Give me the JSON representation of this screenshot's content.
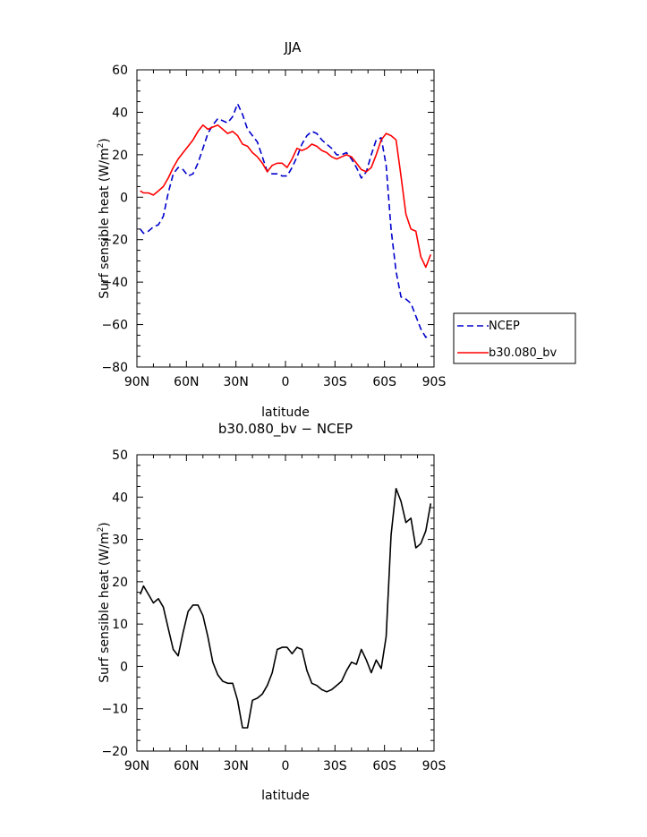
{
  "chart_data": [
    {
      "type": "line",
      "title": "JJA",
      "xlabel": "latitude",
      "ylabel": "Surf sensible heat (W/m²)",
      "ylabel_prefix": "Surf sensible heat (W/m",
      "ylabel_sup": "2",
      "ylabel_suffix": ")",
      "xlim": [
        90,
        -90
      ],
      "ylim": [
        -80,
        60
      ],
      "xticks": [
        90,
        60,
        30,
        0,
        -30,
        -60,
        -90
      ],
      "xtick_labels": [
        "90N",
        "60N",
        "30N",
        "0",
        "30S",
        "60S",
        "90S"
      ],
      "yticks": [
        -80,
        -60,
        -40,
        -20,
        0,
        20,
        40,
        60
      ],
      "ytick_labels": [
        "−80",
        "−60",
        "−40",
        "−20",
        "0",
        "20",
        "40",
        "60"
      ],
      "legend_position": "outside-right",
      "series": [
        {
          "name": "NCEP",
          "color": "#0000cc",
          "style": "dashed",
          "x": [
            88,
            86,
            83,
            80,
            77,
            74,
            71,
            68,
            65,
            62,
            59,
            56,
            53,
            50,
            47,
            44,
            41,
            38,
            35,
            32,
            29,
            26,
            23,
            20,
            17,
            14,
            11,
            8,
            5,
            2,
            -1,
            -4,
            -7,
            -10,
            -13,
            -16,
            -19,
            -22,
            -25,
            -28,
            -31,
            -34,
            -37,
            -40,
            -43,
            -46,
            -49,
            -52,
            -55,
            -58,
            -61,
            -64,
            -67,
            -70,
            -73,
            -76,
            -79,
            -82,
            -85,
            -88
          ],
          "y": [
            -15,
            -17,
            -16,
            -14,
            -13,
            -9,
            2,
            11,
            14,
            13,
            10,
            11,
            16,
            23,
            30,
            34,
            37,
            36,
            35,
            38,
            44,
            39,
            32,
            29,
            26,
            19,
            12,
            11,
            11,
            10,
            10,
            14,
            19,
            25,
            29,
            31,
            30,
            27,
            25,
            23,
            20,
            20,
            21,
            18,
            14,
            9,
            12,
            20,
            27,
            28,
            15,
            -15,
            -35,
            -47,
            -48,
            -50,
            -56,
            -62,
            -66,
            -65
          ]
        },
        {
          "name": "b30.080_bv",
          "color": "#ff0000",
          "style": "solid",
          "x": [
            88,
            86,
            83,
            80,
            77,
            74,
            71,
            68,
            65,
            62,
            59,
            56,
            53,
            50,
            47,
            44,
            41,
            38,
            35,
            32,
            29,
            26,
            23,
            20,
            17,
            14,
            11,
            8,
            5,
            2,
            -1,
            -4,
            -7,
            -10,
            -13,
            -16,
            -19,
            -22,
            -25,
            -28,
            -31,
            -34,
            -37,
            -40,
            -43,
            -46,
            -49,
            -52,
            -55,
            -58,
            -61,
            -64,
            -67,
            -70,
            -73,
            -76,
            -79,
            -82,
            -85,
            -88
          ],
          "y": [
            3,
            2,
            2,
            1,
            3,
            5,
            9,
            14,
            18,
            21,
            24,
            27,
            31,
            34,
            32,
            33,
            34,
            32,
            30,
            31,
            29,
            25,
            24,
            21,
            19,
            16,
            12,
            15,
            16,
            16,
            14,
            18,
            23,
            22,
            23,
            25,
            24,
            22,
            21,
            19,
            18,
            19,
            20,
            19,
            16,
            13,
            12,
            14,
            20,
            27,
            30,
            29,
            27,
            10,
            -8,
            -15,
            -16,
            -28,
            -33,
            -27
          ]
        }
      ]
    },
    {
      "type": "line",
      "title": "b30.080_bv − NCEP",
      "xlabel": "latitude",
      "ylabel": "Surf sensible heat (W/m²)",
      "ylabel_prefix": "Surf sensible heat (W/m",
      "ylabel_sup": "2",
      "ylabel_suffix": ")",
      "xlim": [
        90,
        -90
      ],
      "ylim": [
        -20,
        50
      ],
      "xticks": [
        90,
        60,
        30,
        0,
        -30,
        -60,
        -90
      ],
      "xtick_labels": [
        "90N",
        "60N",
        "30N",
        "0",
        "30S",
        "60S",
        "90S"
      ],
      "yticks": [
        -20,
        -10,
        0,
        10,
        20,
        30,
        40,
        50
      ],
      "ytick_labels": [
        "−20",
        "−10",
        "0",
        "10",
        "20",
        "30",
        "40",
        "50"
      ],
      "series": [
        {
          "name": "",
          "color": "#000000",
          "style": "solid",
          "x": [
            88,
            86,
            83,
            80,
            77,
            74,
            71,
            68,
            65,
            62,
            59,
            56,
            53,
            50,
            47,
            44,
            41,
            38,
            35,
            32,
            29,
            26,
            23,
            20,
            17,
            14,
            11,
            8,
            5,
            2,
            -1,
            -4,
            -7,
            -10,
            -13,
            -16,
            -19,
            -22,
            -25,
            -28,
            -31,
            -34,
            -37,
            -40,
            -43,
            -46,
            -49,
            -52,
            -55,
            -58,
            -61,
            -64,
            -67,
            -70,
            -73,
            -76,
            -79,
            -82,
            -85,
            -88
          ],
          "y": [
            17,
            19,
            17,
            15,
            16,
            14,
            9,
            4,
            2.5,
            8,
            13,
            14.5,
            14.5,
            12,
            7,
            1,
            -2,
            -3.5,
            -4,
            -4,
            -8,
            -14.5,
            -14.5,
            -8,
            -7.5,
            -6.5,
            -4.5,
            -1.5,
            4,
            4.5,
            4.5,
            3,
            4.5,
            4,
            -1,
            -4,
            -4.5,
            -5.5,
            -6,
            -5.5,
            -4.5,
            -3.5,
            -1,
            1,
            0.5,
            4,
            1.5,
            -1.5,
            1.5,
            -0.5,
            7,
            31,
            42,
            39,
            34,
            35,
            28,
            29,
            32,
            38.5
          ]
        }
      ]
    }
  ]
}
